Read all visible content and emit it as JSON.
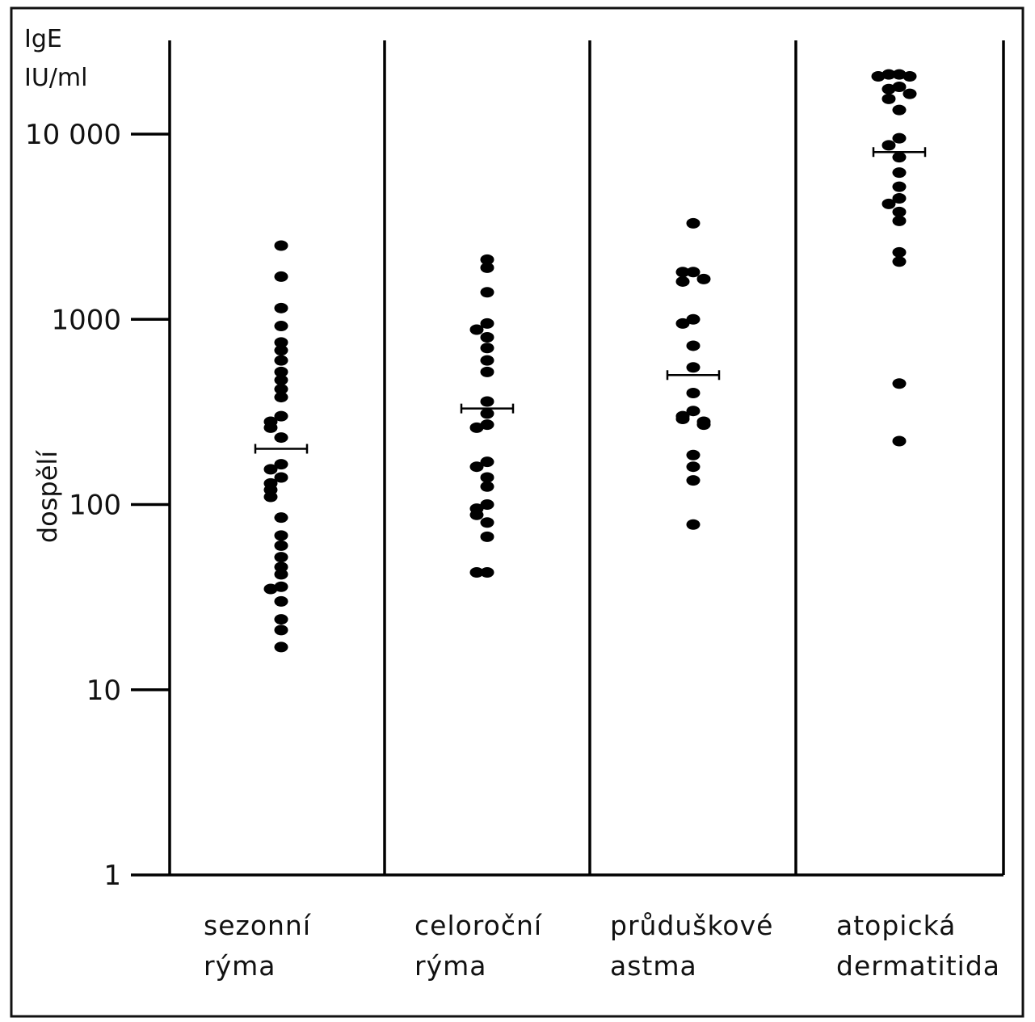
{
  "chart_data": {
    "type": "scatter",
    "y_scale": "log",
    "ylim": [
      1,
      30000
    ],
    "ylabel": "IgE IU/ml",
    "ylabel_lines": [
      "IgE",
      "IU/ml"
    ],
    "side_label": "dospělí",
    "yticks": [
      {
        "value": 1,
        "label": "1"
      },
      {
        "value": 10,
        "label": "10"
      },
      {
        "value": 100,
        "label": "100"
      },
      {
        "value": 1000,
        "label": "1000"
      },
      {
        "value": 10000,
        "label": "10 000"
      }
    ],
    "categories": [
      {
        "lines": [
          "sezonní",
          "rýma"
        ]
      },
      {
        "lines": [
          "celoroční",
          "rýma"
        ]
      },
      {
        "lines": [
          "průduškové",
          "astma"
        ]
      },
      {
        "lines": [
          "atopická",
          "dermatitida"
        ]
      }
    ],
    "series": [
      {
        "values": [
          2500,
          1700,
          1150,
          920,
          750,
          680,
          600,
          520,
          470,
          420,
          380,
          300,
          280,
          260,
          230,
          165,
          155,
          140,
          130,
          120,
          110,
          85,
          68,
          60,
          52,
          46,
          42,
          36,
          35,
          30,
          24,
          21,
          17
        ],
        "mean": 200
      },
      {
        "values": [
          2100,
          1900,
          1400,
          950,
          880,
          800,
          700,
          600,
          520,
          360,
          310,
          270,
          260,
          170,
          160,
          140,
          125,
          100,
          95,
          88,
          80,
          67,
          43,
          43
        ],
        "mean": 330
      },
      {
        "values": [
          3300,
          1800,
          1800,
          1650,
          1600,
          1000,
          950,
          720,
          550,
          400,
          320,
          300,
          290,
          280,
          270,
          185,
          160,
          135,
          78
        ],
        "mean": 500
      },
      {
        "values": [
          21000,
          21000,
          20500,
          20500,
          18000,
          17500,
          16500,
          15500,
          13500,
          9500,
          8700,
          7500,
          6200,
          5200,
          4500,
          4200,
          3800,
          3400,
          2300,
          2050,
          450,
          220
        ],
        "mean": 8000
      }
    ],
    "colors": {
      "marks": "#000000",
      "axes": "#000000",
      "frame": "#111111"
    }
  }
}
